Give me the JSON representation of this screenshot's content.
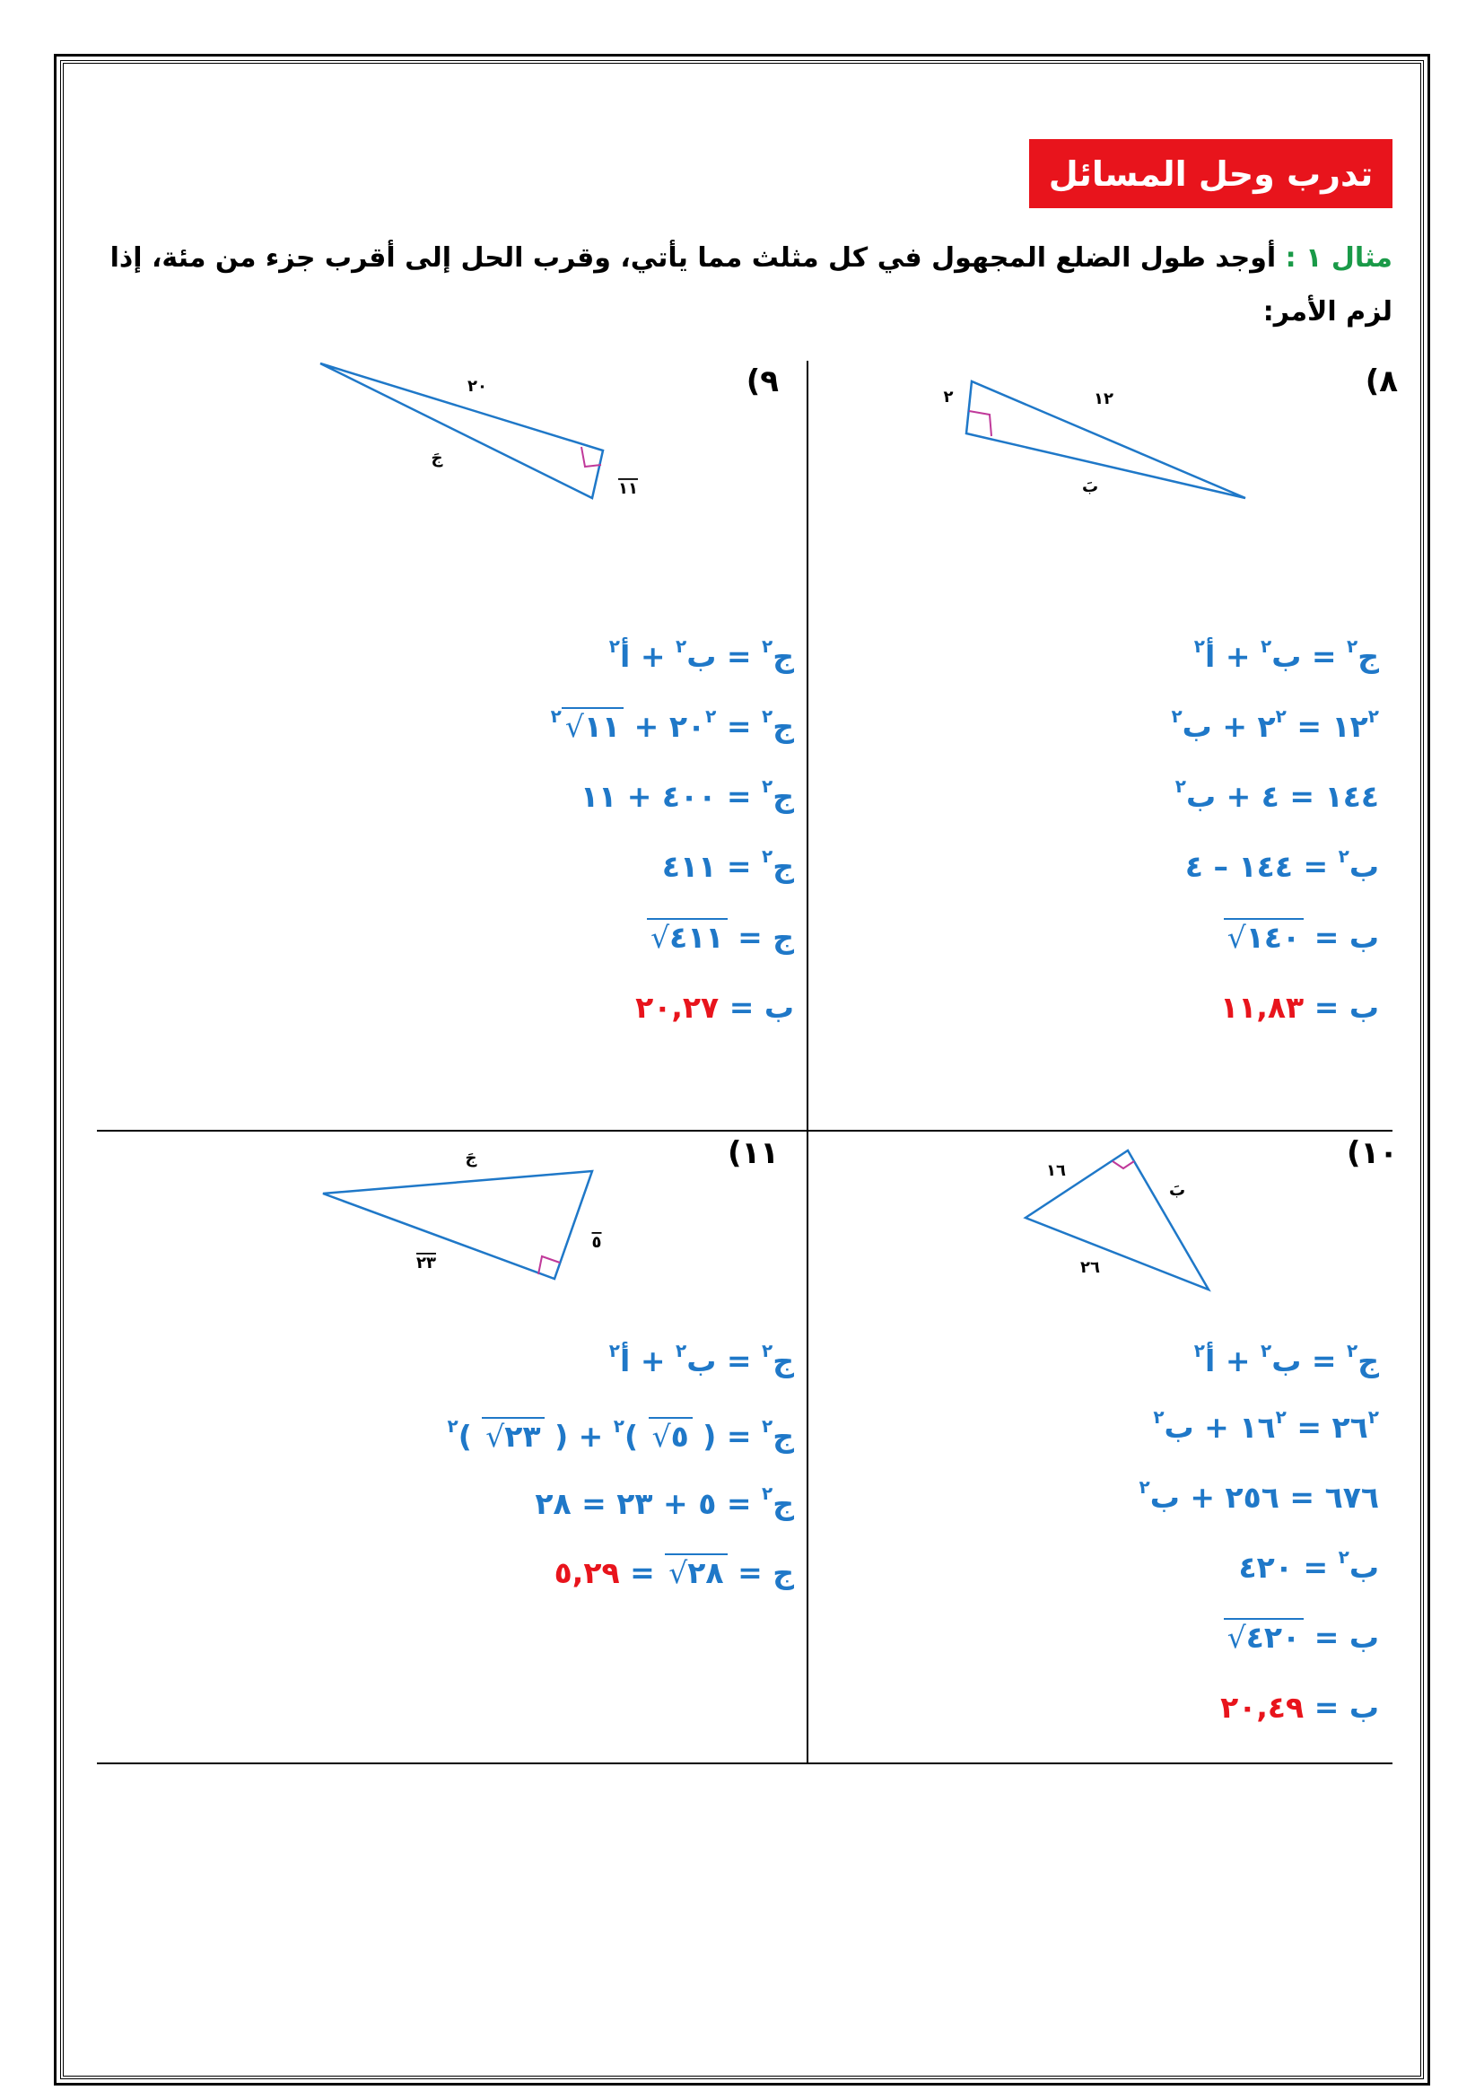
{
  "header": {
    "title": "تدرب وحل المسائل",
    "example_label": "مثال ١ :",
    "instruction": "أوجد طول الضلع المجهول في كل مثلث مما يأتي، وقرب الحل إلى أقرب جزء من مئة، إذا لزم الأمر:"
  },
  "problems": [
    {
      "number": "٨)",
      "labels": [
        "٢",
        "١٢",
        "بَ"
      ],
      "lines": [
        [
          {
            "text": "ج",
            "kind": "n"
          },
          {
            "text": "٢",
            "kind": "sup"
          },
          {
            "text": " = ب",
            "kind": "n"
          },
          {
            "text": "٢",
            "kind": "sup"
          },
          {
            "text": " + أ",
            "kind": "n"
          },
          {
            "text": "٢",
            "kind": "sup"
          }
        ],
        [
          {
            "text": "١٢",
            "kind": "n"
          },
          {
            "text": "٢",
            "kind": "sup"
          },
          {
            "text": " = ٢",
            "kind": "n"
          },
          {
            "text": "٢",
            "kind": "sup"
          },
          {
            "text": " + ب",
            "kind": "n"
          },
          {
            "text": "٢",
            "kind": "sup"
          }
        ],
        [
          {
            "text": "١٤٤ = ٤ + ب",
            "kind": "n"
          },
          {
            "text": "٢",
            "kind": "sup"
          }
        ],
        [
          {
            "text": "ب",
            "kind": "n"
          },
          {
            "text": "٢",
            "kind": "sup"
          },
          {
            "text": " = ١٤٤ – ٤",
            "kind": "n"
          }
        ],
        [
          {
            "text": "ب = ",
            "kind": "n"
          },
          {
            "text": "١٤٠",
            "kind": "root"
          }
        ],
        [
          {
            "text": "ب = ",
            "kind": "n"
          },
          {
            "text": "١١,٨٣",
            "kind": "ans"
          }
        ]
      ]
    },
    {
      "number": "٩)",
      "labels": [
        "٢٠",
        "جَ",
        "١١"
      ],
      "lines": [
        [
          {
            "text": "ج",
            "kind": "n"
          },
          {
            "text": "٢",
            "kind": "sup"
          },
          {
            "text": " = ب",
            "kind": "n"
          },
          {
            "text": "٢",
            "kind": "sup"
          },
          {
            "text": " + أ",
            "kind": "n"
          },
          {
            "text": "٢",
            "kind": "sup"
          }
        ],
        [
          {
            "text": "ج",
            "kind": "n"
          },
          {
            "text": "٢",
            "kind": "sup"
          },
          {
            "text": " = ٢٠",
            "kind": "n"
          },
          {
            "text": "٢",
            "kind": "sup"
          },
          {
            "text": " + ",
            "kind": "n"
          },
          {
            "text": "١١",
            "kind": "root"
          },
          {
            "text": "٢",
            "kind": "sup"
          }
        ],
        [
          {
            "text": "ج",
            "kind": "n"
          },
          {
            "text": "٢",
            "kind": "sup"
          },
          {
            "text": " = ٤٠٠ + ١١",
            "kind": "n"
          }
        ],
        [
          {
            "text": "ج",
            "kind": "n"
          },
          {
            "text": "٢",
            "kind": "sup"
          },
          {
            "text": " = ٤١١",
            "kind": "n"
          }
        ],
        [
          {
            "text": "ج = ",
            "kind": "n"
          },
          {
            "text": "٤١١",
            "kind": "root"
          }
        ],
        [
          {
            "text": "ب = ",
            "kind": "n"
          },
          {
            "text": "٢٠,٢٧",
            "kind": "ans"
          }
        ]
      ]
    },
    {
      "number": "١٠)",
      "labels": [
        "١٦",
        "بَ",
        "٢٦"
      ],
      "lines": [
        [
          {
            "text": "ج",
            "kind": "n"
          },
          {
            "text": "٢",
            "kind": "sup"
          },
          {
            "text": " = ب",
            "kind": "n"
          },
          {
            "text": "٢",
            "kind": "sup"
          },
          {
            "text": " + أ",
            "kind": "n"
          },
          {
            "text": "٢",
            "kind": "sup"
          }
        ],
        [
          {
            "text": "٢٦",
            "kind": "n"
          },
          {
            "text": "٢",
            "kind": "sup"
          },
          {
            "text": " = ١٦",
            "kind": "n"
          },
          {
            "text": "٢",
            "kind": "sup"
          },
          {
            "text": " + ب",
            "kind": "n"
          },
          {
            "text": "٢",
            "kind": "sup"
          }
        ],
        [
          {
            "text": "٦٧٦ = ٢٥٦ + ب",
            "kind": "n"
          },
          {
            "text": "٢",
            "kind": "sup"
          }
        ],
        [
          {
            "text": "ب",
            "kind": "n"
          },
          {
            "text": "٢",
            "kind": "sup"
          },
          {
            "text": " = ٤٢٠",
            "kind": "n"
          }
        ],
        [
          {
            "text": "ب = ",
            "kind": "n"
          },
          {
            "text": "٤٢٠",
            "kind": "root"
          }
        ],
        [
          {
            "text": "ب = ",
            "kind": "n"
          },
          {
            "text": "٢٠,٤٩",
            "kind": "ans"
          }
        ]
      ]
    },
    {
      "number": "١١)",
      "labels": [
        "جَ",
        "٥",
        "٢٣"
      ],
      "lines": [
        [
          {
            "text": "ج",
            "kind": "n"
          },
          {
            "text": "٢",
            "kind": "sup"
          },
          {
            "text": " = ب",
            "kind": "n"
          },
          {
            "text": "٢",
            "kind": "sup"
          },
          {
            "text": " + أ",
            "kind": "n"
          },
          {
            "text": "٢",
            "kind": "sup"
          }
        ],
        [
          {
            "text": "ج",
            "kind": "n"
          },
          {
            "text": "٢",
            "kind": "sup"
          },
          {
            "text": " = ( ",
            "kind": "n"
          },
          {
            "text": "٥",
            "kind": "root"
          },
          {
            "text": " )",
            "kind": "n"
          },
          {
            "text": "٢",
            "kind": "sup"
          },
          {
            "text": " + ( ",
            "kind": "n"
          },
          {
            "text": "٢٣",
            "kind": "root"
          },
          {
            "text": " )",
            "kind": "n"
          },
          {
            "text": "٢",
            "kind": "sup"
          }
        ],
        [
          {
            "text": "ج",
            "kind": "n"
          },
          {
            "text": "٢",
            "kind": "sup"
          },
          {
            "text": " = ٥ + ٢٣ = ٢٨",
            "kind": "n"
          }
        ],
        [
          {
            "text": "ج = ",
            "kind": "n"
          },
          {
            "text": "٢٨",
            "kind": "root"
          },
          {
            "text": " = ",
            "kind": "n"
          },
          {
            "text": "٥,٢٩",
            "kind": "ans"
          }
        ]
      ]
    }
  ]
}
